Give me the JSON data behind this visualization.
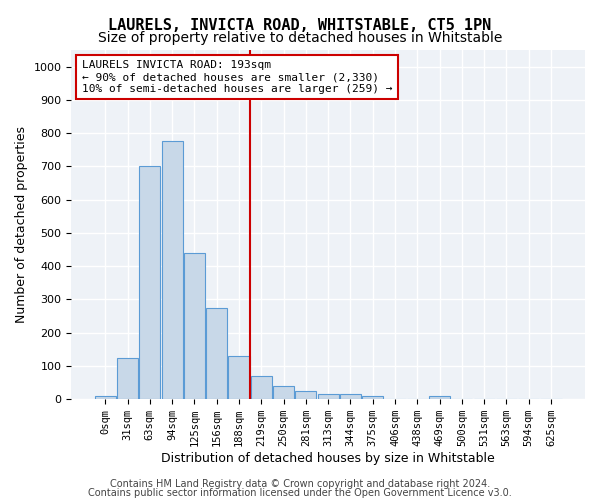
{
  "title1": "LAURELS, INVICTA ROAD, WHITSTABLE, CT5 1PN",
  "title2": "Size of property relative to detached houses in Whitstable",
  "xlabel": "Distribution of detached houses by size in Whitstable",
  "ylabel": "Number of detached properties",
  "bar_labels": [
    "0sqm",
    "31sqm",
    "63sqm",
    "94sqm",
    "125sqm",
    "156sqm",
    "188sqm",
    "219sqm",
    "250sqm",
    "281sqm",
    "313sqm",
    "344sqm",
    "375sqm",
    "406sqm",
    "438sqm",
    "469sqm",
    "500sqm",
    "531sqm",
    "563sqm",
    "594sqm",
    "625sqm"
  ],
  "bar_heights": [
    10,
    125,
    700,
    775,
    440,
    275,
    130,
    70,
    40,
    25,
    15,
    15,
    10,
    0,
    0,
    10,
    0,
    0,
    0,
    0,
    0
  ],
  "bar_color": "#c8d8e8",
  "bar_edge_color": "#5b9bd5",
  "ylim": [
    0,
    1050
  ],
  "yticks": [
    0,
    100,
    200,
    300,
    400,
    500,
    600,
    700,
    800,
    900,
    1000
  ],
  "red_line_x": 6.5,
  "annotation_line1": "LAURELS INVICTA ROAD: 193sqm",
  "annotation_line2": "← 90% of detached houses are smaller (2,330)",
  "annotation_line3": "10% of semi-detached houses are larger (259) →",
  "annotation_box_color": "#cc0000",
  "bg_color": "#eef2f7",
  "footer1": "Contains HM Land Registry data © Crown copyright and database right 2024.",
  "footer2": "Contains public sector information licensed under the Open Government Licence v3.0.",
  "title1_fontsize": 11,
  "title2_fontsize": 10,
  "xlabel_fontsize": 9,
  "ylabel_fontsize": 9,
  "annotation_fontsize": 8,
  "footer_fontsize": 7
}
